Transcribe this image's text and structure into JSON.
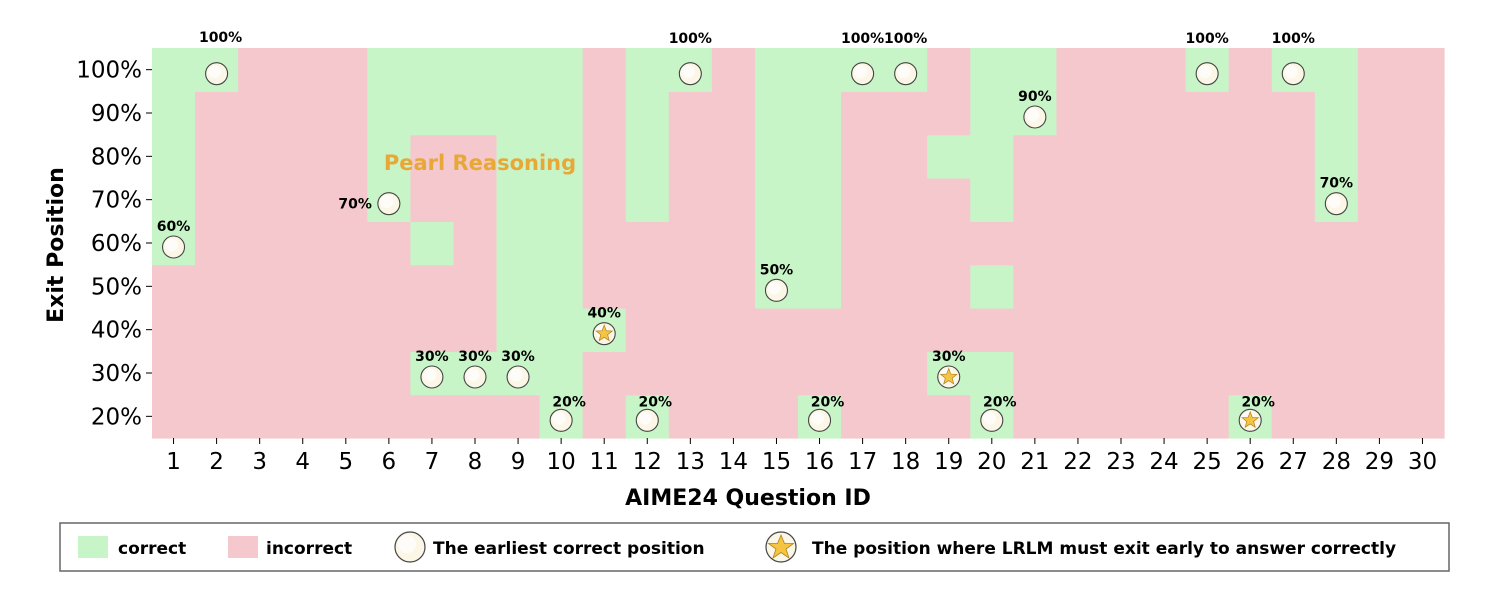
{
  "chart_data": {
    "type": "heatmap",
    "xlabel": "AIME24 Question ID",
    "ylabel": "Exit Position",
    "x_categories": [
      "1",
      "2",
      "3",
      "4",
      "5",
      "6",
      "7",
      "8",
      "9",
      "10",
      "11",
      "12",
      "13",
      "14",
      "15",
      "16",
      "17",
      "18",
      "19",
      "20",
      "21",
      "22",
      "23",
      "24",
      "25",
      "26",
      "27",
      "28",
      "29",
      "30"
    ],
    "y_categories": [
      "20%",
      "30%",
      "40%",
      "50%",
      "60%",
      "70%",
      "80%",
      "90%",
      "100%"
    ],
    "correct_matrix_rows_20_to_100": [
      [
        0,
        0,
        0,
        0,
        0,
        0,
        0,
        0,
        0,
        1,
        0,
        1,
        0,
        0,
        0,
        1,
        0,
        0,
        0,
        1,
        0,
        0,
        0,
        0,
        0,
        1,
        0,
        0,
        0,
        0
      ],
      [
        0,
        0,
        0,
        0,
        0,
        0,
        1,
        1,
        1,
        1,
        0,
        0,
        0,
        0,
        0,
        0,
        0,
        0,
        1,
        1,
        0,
        0,
        0,
        0,
        0,
        0,
        0,
        0,
        0,
        0
      ],
      [
        0,
        0,
        0,
        0,
        0,
        0,
        0,
        0,
        1,
        1,
        1,
        0,
        0,
        0,
        0,
        0,
        0,
        0,
        0,
        0,
        0,
        0,
        0,
        0,
        0,
        0,
        0,
        0,
        0,
        0
      ],
      [
        0,
        0,
        0,
        0,
        0,
        0,
        0,
        0,
        1,
        1,
        0,
        0,
        0,
        0,
        1,
        1,
        0,
        0,
        0,
        1,
        0,
        0,
        0,
        0,
        0,
        0,
        0,
        0,
        0,
        0
      ],
      [
        1,
        0,
        0,
        0,
        0,
        0,
        1,
        0,
        1,
        1,
        0,
        0,
        0,
        0,
        1,
        1,
        0,
        0,
        0,
        0,
        0,
        0,
        0,
        0,
        0,
        0,
        0,
        0,
        0,
        0
      ],
      [
        1,
        0,
        0,
        0,
        0,
        1,
        0,
        0,
        1,
        1,
        0,
        1,
        0,
        0,
        1,
        1,
        0,
        0,
        0,
        1,
        0,
        0,
        0,
        0,
        0,
        0,
        0,
        1,
        0,
        0
      ],
      [
        1,
        0,
        0,
        0,
        0,
        1,
        0,
        0,
        1,
        1,
        0,
        1,
        0,
        0,
        1,
        1,
        0,
        0,
        1,
        1,
        0,
        0,
        0,
        0,
        0,
        0,
        0,
        1,
        0,
        0
      ],
      [
        1,
        0,
        0,
        0,
        0,
        1,
        1,
        1,
        1,
        1,
        0,
        1,
        0,
        0,
        1,
        1,
        0,
        0,
        0,
        1,
        1,
        0,
        0,
        0,
        0,
        0,
        0,
        1,
        0,
        0
      ],
      [
        1,
        1,
        0,
        0,
        0,
        1,
        1,
        1,
        1,
        1,
        0,
        1,
        1,
        0,
        1,
        1,
        1,
        1,
        0,
        1,
        1,
        0,
        0,
        0,
        1,
        0,
        1,
        1,
        0,
        0
      ]
    ],
    "earliest_correct": [
      {
        "q": 1,
        "pos": "60%",
        "label": "60%",
        "marker": "circle"
      },
      {
        "q": 2,
        "pos": "100%",
        "label": "100%",
        "marker": "circle"
      },
      {
        "q": 6,
        "pos": "70%",
        "label": "70%",
        "marker": "circle"
      },
      {
        "q": 7,
        "pos": "30%",
        "label": "30%",
        "marker": "circle"
      },
      {
        "q": 8,
        "pos": "30%",
        "label": "30%",
        "marker": "circle"
      },
      {
        "q": 9,
        "pos": "30%",
        "label": "30%",
        "marker": "circle"
      },
      {
        "q": 10,
        "pos": "20%",
        "label": "20%",
        "marker": "circle"
      },
      {
        "q": 11,
        "pos": "40%",
        "label": "40%",
        "marker": "star"
      },
      {
        "q": 12,
        "pos": "20%",
        "label": "20%",
        "marker": "circle"
      },
      {
        "q": 13,
        "pos": "100%",
        "label": "100%",
        "marker": "circle"
      },
      {
        "q": 15,
        "pos": "50%",
        "label": "50%",
        "marker": "circle"
      },
      {
        "q": 16,
        "pos": "20%",
        "label": "20%",
        "marker": "circle"
      },
      {
        "q": 17,
        "pos": "100%",
        "label": "100%",
        "marker": "circle"
      },
      {
        "q": 18,
        "pos": "100%",
        "label": "100%",
        "marker": "circle"
      },
      {
        "q": 19,
        "pos": "30%",
        "label": "30%",
        "marker": "star"
      },
      {
        "q": 20,
        "pos": "20%",
        "label": "20%",
        "marker": "circle"
      },
      {
        "q": 21,
        "pos": "90%",
        "label": "90%",
        "marker": "circle"
      },
      {
        "q": 25,
        "pos": "100%",
        "label": "100%",
        "marker": "circle"
      },
      {
        "q": 26,
        "pos": "20%",
        "label": "20%",
        "marker": "star"
      },
      {
        "q": 27,
        "pos": "100%",
        "label": "100%",
        "marker": "circle"
      },
      {
        "q": 28,
        "pos": "70%",
        "label": "70%",
        "marker": "circle"
      }
    ],
    "annotation": "Pearl Reasoning",
    "legend": {
      "placement": "bottom",
      "correct": "correct",
      "incorrect": "incorrect",
      "earliest": "The earliest correct position",
      "must_exit": "The position where LRLM must exit early to answer correctly"
    },
    "colors": {
      "correct": "#c8f5c8",
      "incorrect": "#f4c8cc",
      "annotation": "#e8a838",
      "marker_fill": "#fbf6e6",
      "star": "#f5c542"
    }
  }
}
